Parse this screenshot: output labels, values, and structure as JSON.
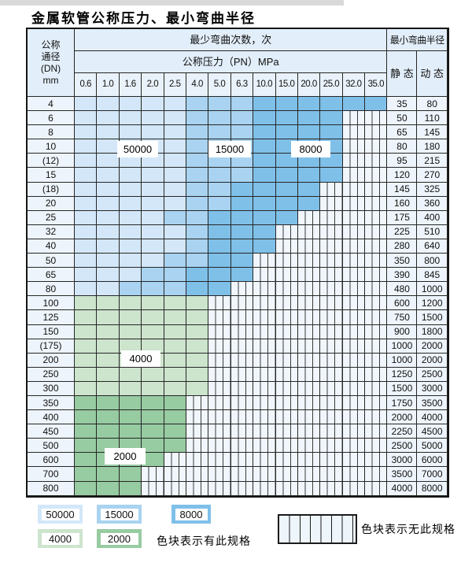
{
  "title": "金属软管公称压力、最小弯曲半径",
  "colors": {
    "blue_50000": "#d3e7f8",
    "blue_15000": "#a9d3f0",
    "blue_8000": "#7fc0e9",
    "green_4000": "#cde4cd",
    "green_2000": "#97cba1",
    "header_bg": "#e2eef9",
    "row_header_bg": "#edf4fb"
  },
  "table": {
    "header": {
      "dn_lines": [
        "公称",
        "通径",
        "(DN)",
        "mm"
      ],
      "bend_times_label": "最少弯曲次数，次",
      "pressure_label": "公称压力（PN）MPa",
      "pressure_columns": [
        "0.6",
        "1.0",
        "1.6",
        "2.0",
        "2.5",
        "4.0",
        "5.0",
        "6.3",
        "10.0",
        "15.0",
        "20.0",
        "25.0",
        "32.0",
        "35.0"
      ],
      "radius_label": "最小弯曲半径",
      "static_label": "静 态",
      "dynamic_label": "动 态"
    },
    "cell_legend": {
      "b1": "50000",
      "b2": "15000",
      "b3": "8000",
      "g1": "4000",
      "g2": "2000",
      "x": "无此规格"
    },
    "rows": [
      {
        "dn": "4",
        "static": "35",
        "dynamic": "80",
        "cells": [
          "b1",
          "b1",
          "b1",
          "b1",
          "b1",
          "b2",
          "b2",
          "b2",
          "b3",
          "b3",
          "b3",
          "b3",
          "b3",
          "b3"
        ]
      },
      {
        "dn": "6",
        "static": "50",
        "dynamic": "110",
        "cells": [
          "b1",
          "b1",
          "b1",
          "b1",
          "b1",
          "b2",
          "b2",
          "b2",
          "b3",
          "b3",
          "b3",
          "b3",
          "x",
          "x"
        ]
      },
      {
        "dn": "8",
        "static": "65",
        "dynamic": "145",
        "cells": [
          "b1",
          "b1",
          "b1",
          "b1",
          "b1",
          "b2",
          "b2",
          "b2",
          "b3",
          "b3",
          "b3",
          "b3",
          "x",
          "x"
        ]
      },
      {
        "dn": "10",
        "static": "80",
        "dynamic": "180",
        "cells": [
          "b1",
          "b1",
          "b1",
          "b1",
          "b1",
          "b2",
          "b2",
          "b2",
          "b3",
          "b3",
          "b3",
          "b3",
          "x",
          "x"
        ]
      },
      {
        "dn": "(12)",
        "static": "95",
        "dynamic": "215",
        "cells": [
          "b1",
          "b1",
          "b1",
          "b1",
          "b1",
          "b2",
          "b2",
          "b2",
          "b3",
          "b3",
          "b3",
          "b3",
          "x",
          "x"
        ]
      },
      {
        "dn": "15",
        "static": "120",
        "dynamic": "270",
        "cells": [
          "b1",
          "b1",
          "b1",
          "b1",
          "b1",
          "b2",
          "b2",
          "b2",
          "b3",
          "b3",
          "b3",
          "b3",
          "x",
          "x"
        ]
      },
      {
        "dn": "(18)",
        "static": "145",
        "dynamic": "325",
        "cells": [
          "b1",
          "b1",
          "b1",
          "b1",
          "b1",
          "b2",
          "b2",
          "b3",
          "b3",
          "b3",
          "b3",
          "x",
          "x",
          "x"
        ]
      },
      {
        "dn": "20",
        "static": "160",
        "dynamic": "360",
        "cells": [
          "b1",
          "b1",
          "b1",
          "b1",
          "b1",
          "b2",
          "b2",
          "b3",
          "b3",
          "b3",
          "b3",
          "x",
          "x",
          "x"
        ]
      },
      {
        "dn": "25",
        "static": "175",
        "dynamic": "400",
        "cells": [
          "b1",
          "b1",
          "b1",
          "b1",
          "b2",
          "b2",
          "b3",
          "b3",
          "b3",
          "b3",
          "x",
          "x",
          "x",
          "x"
        ]
      },
      {
        "dn": "32",
        "static": "225",
        "dynamic": "510",
        "cells": [
          "b1",
          "b1",
          "b1",
          "b1",
          "b1",
          "b2",
          "b3",
          "b3",
          "b3",
          "x",
          "x",
          "x",
          "x",
          "x"
        ]
      },
      {
        "dn": "40",
        "static": "280",
        "dynamic": "640",
        "cells": [
          "b1",
          "b1",
          "b1",
          "b1",
          "b1",
          "b2",
          "b3",
          "b3",
          "b3",
          "x",
          "x",
          "x",
          "x",
          "x"
        ]
      },
      {
        "dn": "50",
        "static": "350",
        "dynamic": "800",
        "cells": [
          "b1",
          "b1",
          "b1",
          "b1",
          "b2",
          "b2",
          "b3",
          "b3",
          "x",
          "x",
          "x",
          "x",
          "x",
          "x"
        ]
      },
      {
        "dn": "65",
        "static": "390",
        "dynamic": "845",
        "cells": [
          "b1",
          "b1",
          "b1",
          "b2",
          "b2",
          "b3",
          "b3",
          "b3",
          "x",
          "x",
          "x",
          "x",
          "x",
          "x"
        ]
      },
      {
        "dn": "80",
        "static": "480",
        "dynamic": "1000",
        "cells": [
          "b1",
          "b1",
          "b2",
          "b2",
          "b2",
          "b3",
          "b3",
          "x",
          "x",
          "x",
          "x",
          "x",
          "x",
          "x"
        ]
      },
      {
        "dn": "100",
        "static": "600",
        "dynamic": "1200",
        "cells": [
          "g1",
          "g1",
          "g1",
          "g1",
          "g1",
          "g1",
          "x",
          "x",
          "x",
          "x",
          "x",
          "x",
          "x",
          "x"
        ]
      },
      {
        "dn": "125",
        "static": "750",
        "dynamic": "1500",
        "cells": [
          "g1",
          "g1",
          "g1",
          "g1",
          "g1",
          "g1",
          "x",
          "x",
          "x",
          "x",
          "x",
          "x",
          "x",
          "x"
        ]
      },
      {
        "dn": "150",
        "static": "900",
        "dynamic": "1800",
        "cells": [
          "g1",
          "g1",
          "g1",
          "g1",
          "g1",
          "g1",
          "x",
          "x",
          "x",
          "x",
          "x",
          "x",
          "x",
          "x"
        ]
      },
      {
        "dn": "(175)",
        "static": "1000",
        "dynamic": "2000",
        "cells": [
          "g1",
          "g1",
          "g1",
          "g1",
          "g1",
          "g1",
          "x",
          "x",
          "x",
          "x",
          "x",
          "x",
          "x",
          "x"
        ]
      },
      {
        "dn": "200",
        "static": "1000",
        "dynamic": "2000",
        "cells": [
          "g1",
          "g1",
          "g1",
          "g1",
          "g1",
          "g1",
          "x",
          "x",
          "x",
          "x",
          "x",
          "x",
          "x",
          "x"
        ]
      },
      {
        "dn": "250",
        "static": "1250",
        "dynamic": "2500",
        "cells": [
          "g1",
          "g1",
          "g1",
          "g1",
          "g1",
          "g1",
          "x",
          "x",
          "x",
          "x",
          "x",
          "x",
          "x",
          "x"
        ]
      },
      {
        "dn": "300",
        "static": "1500",
        "dynamic": "3000",
        "cells": [
          "g1",
          "g1",
          "g1",
          "g1",
          "g1",
          "g1",
          "x",
          "x",
          "x",
          "x",
          "x",
          "x",
          "x",
          "x"
        ]
      },
      {
        "dn": "350",
        "static": "1750",
        "dynamic": "3500",
        "cells": [
          "g2",
          "g2",
          "g2",
          "g2",
          "g2",
          "x",
          "x",
          "x",
          "x",
          "x",
          "x",
          "x",
          "x",
          "x"
        ]
      },
      {
        "dn": "400",
        "static": "2000",
        "dynamic": "4000",
        "cells": [
          "g2",
          "g2",
          "g2",
          "g2",
          "g2",
          "x",
          "x",
          "x",
          "x",
          "x",
          "x",
          "x",
          "x",
          "x"
        ]
      },
      {
        "dn": "450",
        "static": "2250",
        "dynamic": "4500",
        "cells": [
          "g2",
          "g2",
          "g2",
          "g2",
          "g2",
          "x",
          "x",
          "x",
          "x",
          "x",
          "x",
          "x",
          "x",
          "x"
        ]
      },
      {
        "dn": "500",
        "static": "2500",
        "dynamic": "5000",
        "cells": [
          "g2",
          "g2",
          "g2",
          "g2",
          "g2",
          "x",
          "x",
          "x",
          "x",
          "x",
          "x",
          "x",
          "x",
          "x"
        ]
      },
      {
        "dn": "600",
        "static": "3000",
        "dynamic": "6000",
        "cells": [
          "g2",
          "g2",
          "g2",
          "g2",
          "x",
          "x",
          "x",
          "x",
          "x",
          "x",
          "x",
          "x",
          "x",
          "x"
        ]
      },
      {
        "dn": "700",
        "static": "3500",
        "dynamic": "7000",
        "cells": [
          "g2",
          "g2",
          "g2",
          "x",
          "x",
          "x",
          "x",
          "x",
          "x",
          "x",
          "x",
          "x",
          "x",
          "x"
        ]
      },
      {
        "dn": "800",
        "static": "4000",
        "dynamic": "8000",
        "cells": [
          "g2",
          "g2",
          "g2",
          "x",
          "x",
          "x",
          "x",
          "x",
          "x",
          "x",
          "x",
          "x",
          "x",
          "x"
        ]
      }
    ]
  },
  "overlay_labels": {
    "blue_50000": "50000",
    "blue_15000": "15000",
    "blue_8000": "8000",
    "green_4000": "4000",
    "green_2000": "2000"
  },
  "legend": {
    "items": [
      {
        "value": "50000",
        "color_key": "blue_50000"
      },
      {
        "value": "15000",
        "color_key": "blue_15000"
      },
      {
        "value": "8000",
        "color_key": "blue_8000"
      },
      {
        "value": "4000",
        "color_key": "green_4000"
      },
      {
        "value": "2000",
        "color_key": "green_2000"
      }
    ],
    "has_spec_text": "色块表示有此规格",
    "no_spec_text": "色块表示无此规格"
  }
}
